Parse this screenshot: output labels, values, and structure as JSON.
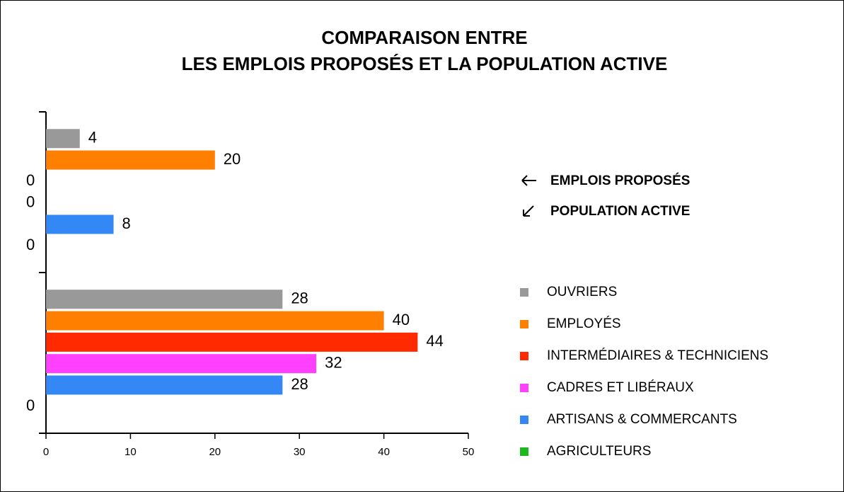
{
  "chart_data": {
    "type": "bar",
    "orientation": "horizontal",
    "title": [
      "COMPARAISON ENTRE",
      "LES EMPLOIS PROPOSÉS ET LA POPULATION ACTIVE"
    ],
    "annotations": [
      "EMPLOIS PROPOSÉS",
      "POPULATION ACTIVE"
    ],
    "categories": [
      null,
      null
    ],
    "series": [
      {
        "name": "OUVRIERS",
        "color": "#999999",
        "values": [
          4,
          28
        ]
      },
      {
        "name": "EMPLOYÉS",
        "color": "#ff7f00",
        "values": [
          20,
          40
        ]
      },
      {
        "name": "INTERMÉDIAIRES & TECHNICIENS",
        "color": "#ff2a00",
        "values": [
          0,
          44
        ]
      },
      {
        "name": "CADRES ET LIBÉRAUX",
        "color": "#ff40ff",
        "values": [
          0,
          32
        ]
      },
      {
        "name": "ARTISANS & COMMERCANTS",
        "color": "#3388f5",
        "values": [
          8,
          28
        ]
      },
      {
        "name": "AGRICULTEURS",
        "color": "#1db81d",
        "values": [
          0,
          0
        ]
      }
    ],
    "xlim": [
      0,
      50
    ],
    "xticks": [
      0,
      10,
      20,
      30,
      40,
      50
    ],
    "grid": false,
    "legend": "right"
  }
}
